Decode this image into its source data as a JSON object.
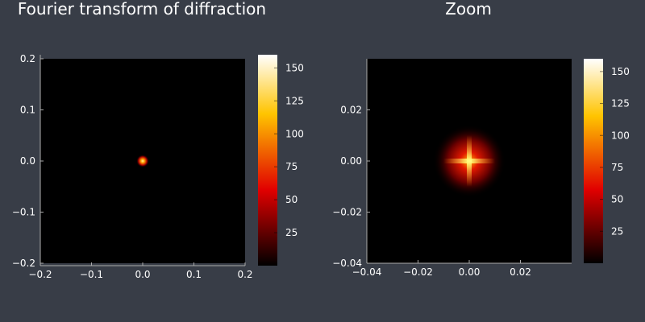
{
  "chart_data": [
    {
      "type": "heatmap",
      "title": "Fourier transform of diffraction",
      "xlim": [
        -0.2,
        0.2
      ],
      "ylim": [
        -0.2,
        0.2
      ],
      "xticks": [
        -0.2,
        -0.1,
        0.0,
        0.1,
        0.2
      ],
      "xtick_labels": [
        "−0.2",
        "−0.1",
        "0.0",
        "0.1",
        "0.2"
      ],
      "yticks": [
        -0.2,
        -0.1,
        0.0,
        0.1,
        0.2
      ],
      "ytick_labels": [
        "−0.2",
        "−0.1",
        "0.0",
        "0.1",
        "0.2"
      ],
      "peak": {
        "x": 0.0,
        "y": 0.0,
        "value": 160
      },
      "colorbar": {
        "colormap": "hot",
        "min": 0,
        "max": 160,
        "ticks": [
          25,
          50,
          75,
          100,
          125,
          150
        ],
        "tick_labels": [
          "25",
          "50",
          "75",
          "100",
          "125",
          "150"
        ]
      }
    },
    {
      "type": "heatmap",
      "title": "Zoom",
      "xlim": [
        -0.04,
        0.04
      ],
      "ylim": [
        -0.04,
        0.04
      ],
      "xticks": [
        -0.04,
        -0.02,
        0.0,
        0.02
      ],
      "xtick_labels": [
        "−0.04",
        "−0.02",
        "0.00",
        "0.02"
      ],
      "yticks": [
        -0.04,
        -0.02,
        0.0,
        0.02
      ],
      "ytick_labels": [
        "−0.04",
        "−0.02",
        "0.00",
        "0.02"
      ],
      "peak": {
        "x": 0.0,
        "y": 0.0,
        "value": 160
      },
      "colorbar": {
        "colormap": "hot",
        "min": 0,
        "max": 160,
        "ticks": [
          25,
          50,
          75,
          100,
          125,
          150
        ],
        "tick_labels": [
          "25",
          "50",
          "75",
          "100",
          "125",
          "150"
        ]
      }
    }
  ],
  "colors": {
    "background": "#383d47",
    "axis": "#aaaaaa",
    "text": "#ffffff"
  }
}
